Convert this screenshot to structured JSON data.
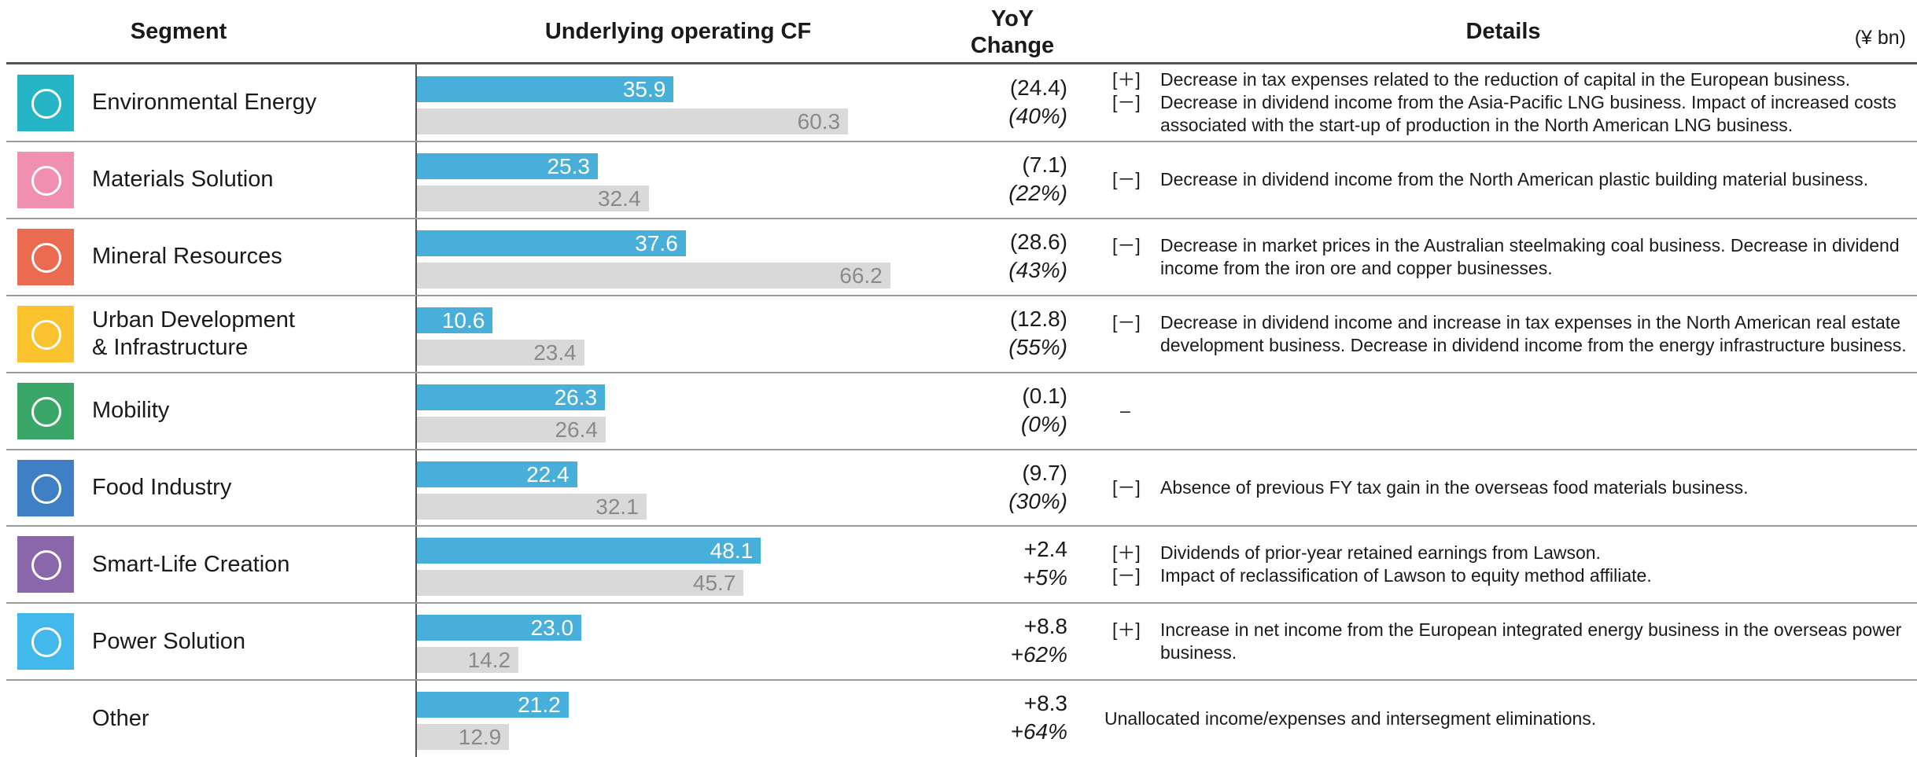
{
  "header": {
    "segment": "Segment",
    "cf": "Underlying operating CF",
    "yoy": [
      "YoY",
      "Change"
    ],
    "details": "Details",
    "unit": "(¥ bn)"
  },
  "rows": [
    {
      "segment": [
        "Environmental Energy"
      ],
      "current": 35.9,
      "current_label": "35.9",
      "previous": 60.3,
      "previous_label": "60.3",
      "change": "(24.4)",
      "change_pct": "(40%)",
      "details": [
        {
          "sign": "[＋]",
          "text": "Decrease in tax expenses related to the reduction of capital in the European business."
        },
        {
          "sign": "[－]",
          "text": "Decrease in dividend income from the Asia-Pacific LNG business. Impact of increased costs associated with the start-up of production in the North American LNG business."
        }
      ]
    },
    {
      "segment": [
        "Materials Solution"
      ],
      "current": 25.3,
      "current_label": "25.3",
      "previous": 32.4,
      "previous_label": "32.4",
      "change": "(7.1)",
      "change_pct": "(22%)",
      "details": [
        {
          "sign": "[－]",
          "text": "Decrease in dividend income from the North American plastic building material business."
        }
      ]
    },
    {
      "segment": [
        "Mineral Resources"
      ],
      "current": 37.6,
      "current_label": "37.6",
      "previous": 66.2,
      "previous_label": "66.2",
      "change": "(28.6)",
      "change_pct": "(43%)",
      "details": [
        {
          "sign": "[－]",
          "text": "Decrease in market prices in the Australian steelmaking coal business. Decrease in dividend income from the iron ore and copper businesses."
        }
      ]
    },
    {
      "segment": [
        "Urban Development",
        "& Infrastructure"
      ],
      "current": 10.6,
      "current_label": "10.6",
      "previous": 23.4,
      "previous_label": "23.4",
      "change": "(12.8)",
      "change_pct": "(55%)",
      "details": [
        {
          "sign": "[－]",
          "text": "Decrease in dividend income and increase in tax expenses in the North American real estate development business. Decrease in dividend income from the energy infrastructure business."
        }
      ]
    },
    {
      "segment": [
        "Mobility"
      ],
      "current": 26.3,
      "current_label": "26.3",
      "previous": 26.4,
      "previous_label": "26.4",
      "change": "(0.1)",
      "change_pct": "(0%)",
      "details": [
        {
          "text": "–"
        }
      ]
    },
    {
      "segment": [
        "Food Industry"
      ],
      "current": 22.4,
      "current_label": "22.4",
      "previous": 32.1,
      "previous_label": "32.1",
      "change": "(9.7)",
      "change_pct": "(30%)",
      "details": [
        {
          "sign": "[－]",
          "text": "Absence of previous FY tax gain in the overseas food materials business."
        }
      ]
    },
    {
      "segment": [
        "Smart-Life Creation"
      ],
      "current": 48.1,
      "current_label": "48.1",
      "previous": 45.7,
      "previous_label": "45.7",
      "change": "+2.4",
      "change_pct": "+5%",
      "details": [
        {
          "sign": "[＋]",
          "text": "Dividends of prior-year retained earnings from Lawson."
        },
        {
          "sign": "[－]",
          "text": "Impact of reclassification of Lawson to equity method affiliate."
        }
      ]
    },
    {
      "segment": [
        "Power Solution"
      ],
      "current": 23.0,
      "current_label": "23.0",
      "previous": 14.2,
      "previous_label": "14.2",
      "change": "+8.8",
      "change_pct": "+62%",
      "details": [
        {
          "sign": "[＋]",
          "text": "Increase in net income from the European integrated energy business in the overseas power business."
        }
      ]
    },
    {
      "segment": [
        "Other"
      ],
      "current": 21.2,
      "current_label": "21.2",
      "previous": 12.9,
      "previous_label": "12.9",
      "change": "+8.3",
      "change_pct": "+64%",
      "details": [
        {
          "text": "Unallocated income/expenses and intersegment eliminations."
        }
      ]
    }
  ]
}
